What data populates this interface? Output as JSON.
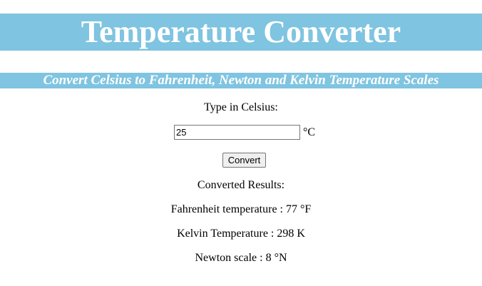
{
  "title": "Temperature Converter",
  "subtitle": "Convert Celsius to Fahrenheit, Newton and Kelvin Temperature Scales",
  "form": {
    "prompt": "Type in Celsius:",
    "input_value": "25",
    "unit": "°C",
    "button_label": "Convert"
  },
  "results": {
    "heading": "Converted Results:",
    "fahrenheit": "Fahrenheit temperature : 77 °F",
    "kelvin": "Kelvin Temperature : 298 K",
    "newton": "Newton scale : 8 °N"
  },
  "colors": {
    "banner": "#7fc4e0",
    "banner_text": "#ffffff"
  }
}
